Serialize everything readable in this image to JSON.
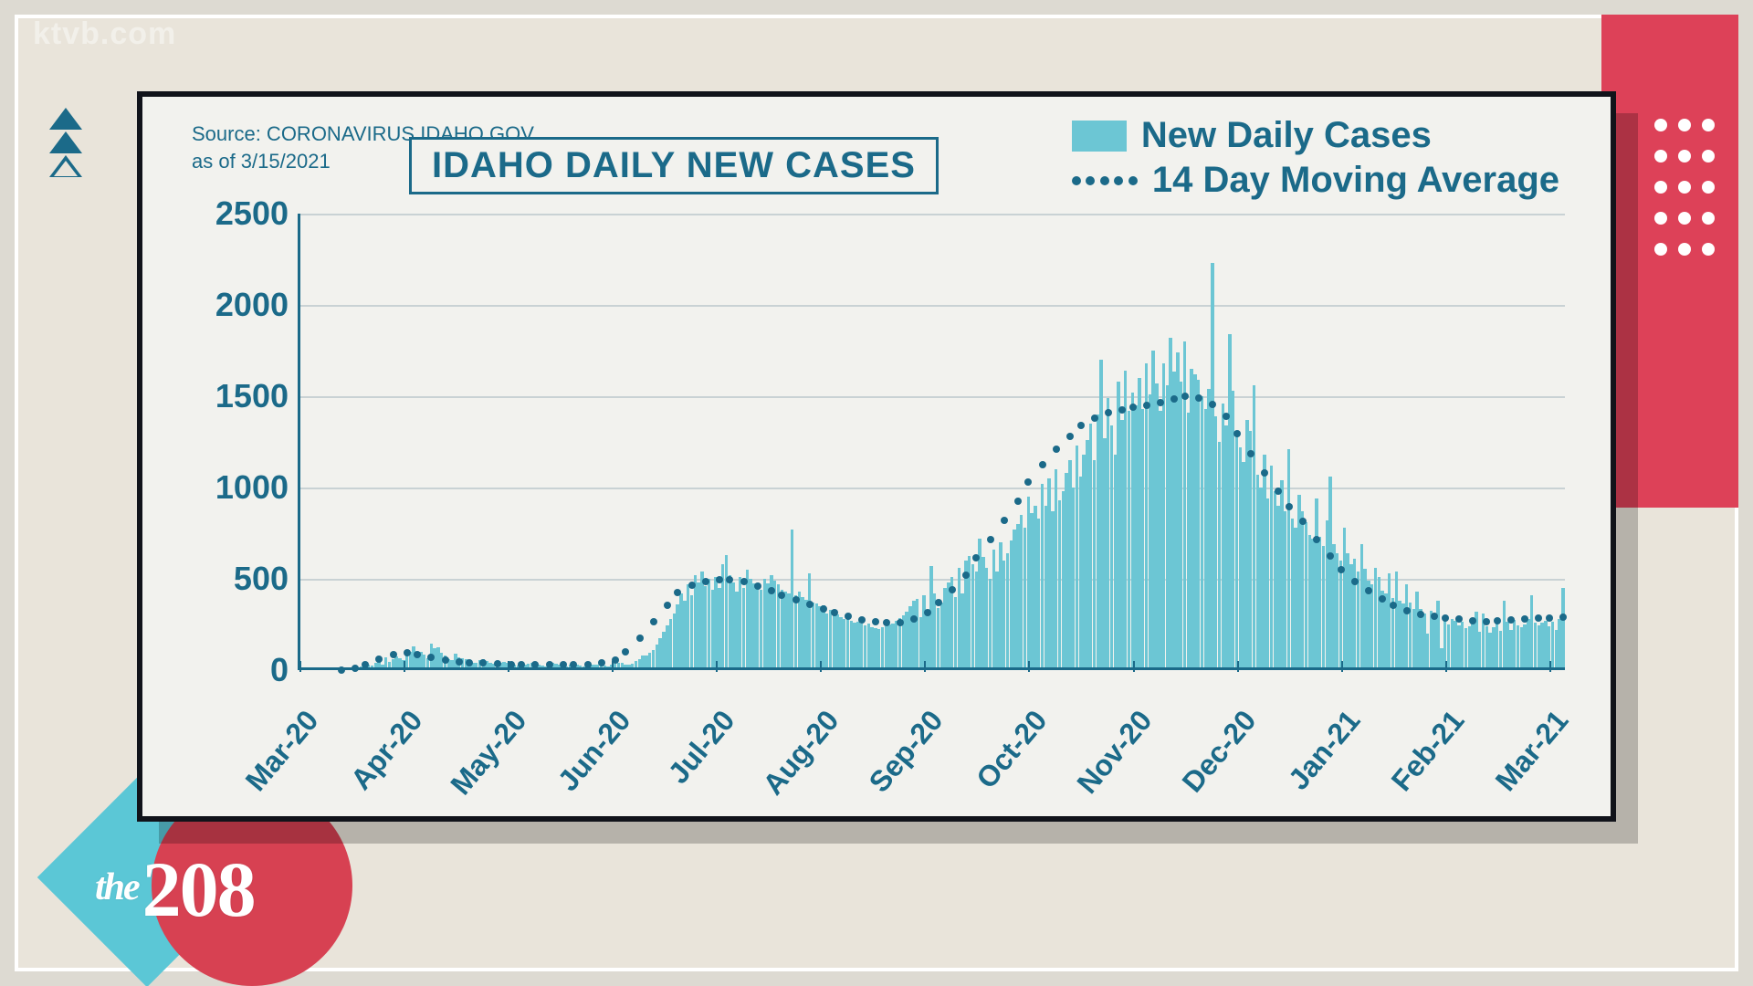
{
  "broadcast": {
    "watermark": "ktvb.com",
    "logo_the": "the",
    "logo_num": "208",
    "triangle_color": "#1b6a89",
    "red_band_color": "#dd4158",
    "dot_color": "#ffffff",
    "dot_rows": 5,
    "dot_cols": 3,
    "logo_diamond_color": "#5bc7d6",
    "logo_circle_color": "#d74152",
    "bg_color": "#e9e4da"
  },
  "chart": {
    "type": "bar+dotted-line",
    "title": "IDAHO DAILY NEW CASES",
    "source_line1": "Source: CORONAVIRUS.IDAHO.GOV",
    "source_line2": "as of 3/15/2021",
    "legend_bars": "New Daily Cases",
    "legend_line": "14 Day Moving Average",
    "card_bg": "#f2f2ee",
    "card_border": "#11131a",
    "text_color": "#1b6a89",
    "bar_color": "#6cc6d4",
    "line_color": "#1b6a89",
    "grid_color": "#c9d2d4",
    "title_fontsize": 40,
    "legend_fontsize": 40,
    "ylabel_fontsize": 36,
    "xlabel_fontsize": 32,
    "ylim": [
      0,
      2500
    ],
    "ytick_step": 500,
    "yticks": [
      0,
      500,
      1000,
      1500,
      2000,
      2500
    ],
    "x_labels": [
      "Mar-20",
      "Apr-20",
      "May-20",
      "Jun-20",
      "Jul-20",
      "Aug-20",
      "Sep-20",
      "Oct-20",
      "Nov-20",
      "Dec-20",
      "Jan-21",
      "Feb-21",
      "Mar-21"
    ],
    "label_rotation_deg": -50,
    "n_days": 380,
    "days_per_month_tick": 30,
    "bars": [
      0,
      0,
      0,
      0,
      0,
      0,
      0,
      0,
      0,
      0,
      0,
      0,
      2,
      3,
      5,
      6,
      8,
      12,
      18,
      24,
      31,
      24,
      41,
      47,
      31,
      72,
      46,
      58,
      75,
      65,
      55,
      83,
      98,
      130,
      96,
      102,
      87,
      65,
      143,
      118,
      125,
      95,
      78,
      62,
      55,
      88,
      72,
      65,
      58,
      48,
      42,
      38,
      55,
      62,
      48,
      41,
      35,
      32,
      41,
      47,
      38,
      32,
      28,
      25,
      31,
      28,
      35,
      40,
      32,
      28,
      25,
      22,
      30,
      38,
      34,
      28,
      24,
      22,
      28,
      34,
      30,
      25,
      22,
      20,
      28,
      32,
      30,
      28,
      25,
      22,
      28,
      35,
      40,
      38,
      32,
      28,
      35,
      48,
      62,
      78,
      82,
      95,
      110,
      140,
      175,
      210,
      245,
      280,
      310,
      360,
      420,
      380,
      470,
      410,
      520,
      480,
      540,
      460,
      500,
      440,
      510,
      450,
      580,
      632,
      520,
      480,
      430,
      510,
      450,
      550,
      500,
      475,
      460,
      440,
      500,
      475,
      520,
      490,
      470,
      440,
      430,
      420,
      770,
      410,
      430,
      400,
      385,
      530,
      370,
      365,
      350,
      355,
      310,
      330,
      300,
      305,
      290,
      280,
      285,
      270,
      260,
      265,
      255,
      245,
      255,
      235,
      230,
      225,
      235,
      240,
      250,
      255,
      270,
      285,
      300,
      320,
      350,
      380,
      390,
      292,
      410,
      320,
      570,
      420,
      340,
      370,
      450,
      480,
      510,
      400,
      560,
      420,
      600,
      625,
      580,
      540,
      720,
      618,
      560,
      500,
      660,
      540,
      700,
      598,
      640,
      710,
      770,
      800,
      850,
      780,
      950,
      860,
      900,
      830,
      1020,
      900,
      1050,
      870,
      1100,
      930,
      980,
      1080,
      1150,
      1000,
      1230,
      1060,
      1180,
      1260,
      1350,
      1150,
      1400,
      1700,
      1270,
      1490,
      1340,
      1180,
      1580,
      1370,
      1640,
      1420,
      1520,
      1450,
      1600,
      1430,
      1680,
      1510,
      1750,
      1570,
      1420,
      1680,
      1560,
      1820,
      1635,
      1740,
      1580,
      1800,
      1410,
      1650,
      1620,
      1590,
      1500,
      1430,
      1540,
      2230,
      1390,
      1250,
      1460,
      1340,
      1840,
      1530,
      1280,
      1220,
      1140,
      1370,
      1310,
      1560,
      1070,
      1000,
      1180,
      940,
      1120,
      980,
      900,
      1040,
      870,
      1210,
      830,
      780,
      960,
      870,
      810,
      740,
      720,
      940,
      730,
      680,
      820,
      1060,
      690,
      640,
      600,
      780,
      640,
      580,
      610,
      540,
      690,
      555,
      490,
      470,
      560,
      510,
      435,
      420,
      530,
      395,
      540,
      380,
      365,
      470,
      370,
      335,
      430,
      335,
      312,
      200,
      325,
      290,
      380,
      120,
      278,
      250,
      280,
      270,
      245,
      265,
      228,
      240,
      256,
      320,
      210,
      310,
      240,
      205,
      235,
      260,
      215,
      380,
      265,
      220,
      275,
      245,
      233,
      252,
      280,
      410,
      260,
      245,
      258,
      270,
      240,
      263,
      220,
      282,
      451
    ],
    "moving_avg": [
      2,
      4,
      6,
      10,
      15,
      22,
      30,
      40,
      52,
      62,
      72,
      80,
      86,
      90,
      92,
      93,
      92,
      90,
      86,
      80,
      75,
      70,
      65,
      60,
      56,
      52,
      49,
      46,
      44,
      42,
      41,
      40,
      39,
      38,
      37,
      36,
      35,
      34,
      33,
      32,
      32,
      31,
      31,
      30,
      30,
      30,
      29,
      29,
      29,
      28,
      28,
      28,
      28,
      28,
      29,
      30,
      31,
      32,
      33,
      35,
      38,
      42,
      48,
      56,
      68,
      82,
      100,
      122,
      148,
      176,
      205,
      235,
      265,
      295,
      325,
      355,
      382,
      405,
      425,
      442,
      455,
      465,
      473,
      480,
      485,
      490,
      493,
      495,
      496,
      496,
      495,
      493,
      490,
      485,
      478,
      470,
      460,
      450,
      442,
      435,
      428,
      420,
      412,
      403,
      395,
      386,
      377,
      368,
      360,
      351,
      343,
      335,
      327,
      320,
      313,
      306,
      300,
      294,
      288,
      282,
      277,
      272,
      268,
      264,
      261,
      259,
      258,
      258,
      259,
      262,
      266,
      272,
      280,
      290,
      302,
      316,
      332,
      350,
      370,
      392,
      415,
      440,
      466,
      493,
      522,
      552,
      583,
      615,
      648,
      682,
      716,
      750,
      785,
      820,
      855,
      890,
      925,
      960,
      994,
      1028,
      1061,
      1093,
      1124,
      1154,
      1183,
      1210,
      1236,
      1260,
      1282,
      1303,
      1322,
      1339,
      1355,
      1369,
      1381,
      1392,
      1401,
      1409,
      1416,
      1422,
      1427,
      1432,
      1436,
      1440,
      1444,
      1448,
      1452,
      1456,
      1461,
      1466,
      1471,
      1477,
      1483,
      1490,
      1495,
      1498,
      1498,
      1495,
      1489,
      1480,
      1468,
      1453,
      1435,
      1414,
      1390,
      1362,
      1330,
      1295,
      1258,
      1222,
      1186,
      1150,
      1115,
      1080,
      1046,
      1012,
      980,
      950,
      921,
      895,
      870,
      845,
      815,
      783,
      749,
      716,
      683,
      652,
      623,
      597,
      572,
      549,
      527,
      507,
      487,
      468,
      451,
      435,
      420,
      406,
      392,
      379,
      366,
      354,
      343,
      333,
      324,
      316,
      310,
      305,
      301,
      298,
      295,
      292,
      290,
      287,
      284,
      281,
      278,
      275,
      272,
      269,
      267,
      266,
      266,
      267,
      268,
      270,
      272,
      274,
      276,
      278,
      280,
      281,
      282,
      283,
      284,
      285,
      286,
      287,
      288,
      289,
      290
    ]
  }
}
